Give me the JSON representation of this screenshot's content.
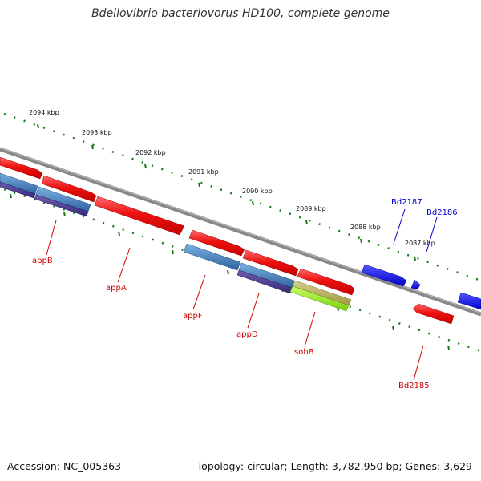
{
  "title": "Bdellovibrio bacteriovorus HD100, complete genome",
  "footer": {
    "accession": "Accession: NC_005363",
    "summary": "Topology: circular; Length: 3,782,950 bp; Genes: 3,629"
  },
  "ruler": [
    "2094 kbp",
    "2093 kbp",
    "2092 kbp",
    "2091 kbp",
    "2090 kbp",
    "2089 kbp",
    "2088 kbp",
    "2087 kbp"
  ],
  "colors": {
    "backbone": "#888888",
    "tick": "#1a7a1a",
    "cds": "#ee1111",
    "feature_blue": "#3a78b8",
    "feature_purple": "#4a3a8a",
    "feature_olive": "#b8b060",
    "feature_lime": "#99ee22",
    "gene_dark_blue": "#1111ee",
    "label_red": "#cc0000",
    "label_blue": "#0000cc"
  },
  "genes": [
    {
      "name": "appB",
      "color": "label_red"
    },
    {
      "name": "appA",
      "color": "label_red"
    },
    {
      "name": "appF",
      "color": "label_red"
    },
    {
      "name": "appD",
      "color": "label_red"
    },
    {
      "name": "sohB",
      "color": "label_red"
    },
    {
      "name": "Bd2185",
      "color": "label_red"
    },
    {
      "name": "Bd2187",
      "color": "label_blue"
    },
    {
      "name": "Bd2186",
      "color": "label_blue"
    }
  ]
}
